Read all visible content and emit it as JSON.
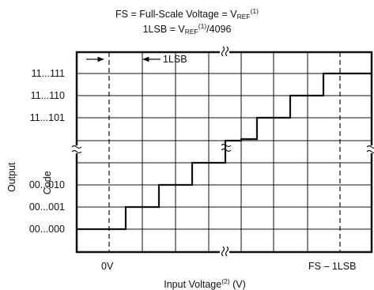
{
  "title": {
    "line1": {
      "prefix": "FS = Full-Scale Voltage = V",
      "sub": "REF",
      "sup": "(1)"
    },
    "line2": {
      "prefix": "1LSB = V",
      "sub": "REF",
      "sup": "(1)",
      "suffix": "/4096"
    }
  },
  "annotation": {
    "lsb_label": "1LSB"
  },
  "y_axis": {
    "label_part1": "Output",
    "label_part2": "Code",
    "ticks": [
      "11...111",
      "11...110",
      "11...101",
      "00...010",
      "00...001",
      "00...000"
    ]
  },
  "x_axis": {
    "tick_left": "0V",
    "tick_right": "FS – 1LSB",
    "label_prefix": "Input Voltage",
    "label_sup": "(2)",
    "label_suffix": " (V)"
  },
  "colors": {
    "line": "#111111",
    "grid": "#111111",
    "background": "#ffffff"
  }
}
